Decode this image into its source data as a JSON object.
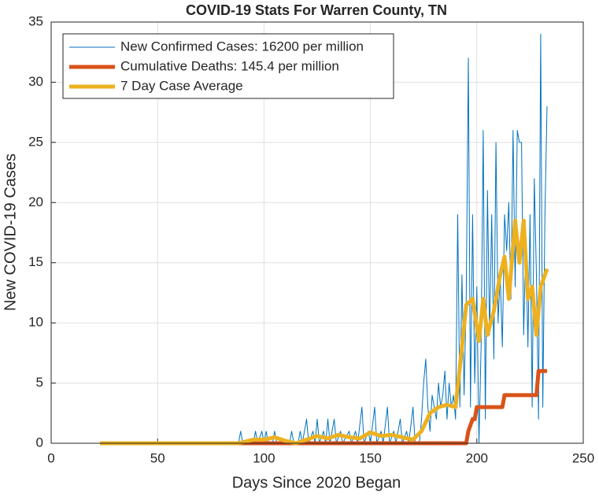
{
  "chart_data": {
    "type": "line",
    "title": "COVID-19 Stats For Warren County, TN",
    "x_label": "Days Since 2020 Began",
    "y_label": "New COVID-19 Cases",
    "xlim": [
      0,
      250
    ],
    "xticks": [
      0,
      50,
      100,
      150,
      200,
      250
    ],
    "ylim": [
      0,
      35
    ],
    "yticks": [
      0,
      5,
      10,
      15,
      20,
      25,
      30,
      35
    ],
    "grid": true,
    "legend": "upper-left",
    "series": [
      {
        "name": "New Confirmed Cases: 16200 per million",
        "color": "#0072bd",
        "width": 1,
        "x": [
          23,
          88,
          89,
          90,
          95,
          96,
          97,
          99,
          100,
          101,
          102,
          104,
          105,
          106,
          112,
          113,
          114,
          116,
          117,
          118,
          120,
          121,
          123,
          124,
          125,
          126,
          128,
          129,
          130,
          131,
          133,
          134,
          136,
          137,
          140,
          141,
          143,
          144,
          146,
          147,
          149,
          150,
          152,
          153,
          155,
          156,
          158,
          159,
          161,
          162,
          164,
          165,
          167,
          168,
          170,
          171,
          173,
          174,
          175,
          176,
          177,
          178,
          179,
          180,
          181,
          182,
          183,
          184,
          185,
          186,
          187,
          188,
          189,
          190,
          191,
          192,
          193,
          194,
          195,
          196,
          197,
          198,
          199,
          200,
          201,
          202,
          203,
          204,
          205,
          206,
          207,
          208,
          209,
          210,
          211,
          212,
          213,
          214,
          215,
          216,
          217,
          218,
          219,
          220,
          221,
          222,
          223,
          224,
          225,
          226,
          227,
          228,
          229,
          230,
          231,
          232,
          233
        ],
        "values": [
          0,
          0,
          1,
          0,
          0,
          1,
          0,
          1,
          0,
          1,
          0,
          0,
          1,
          0,
          0,
          1,
          0,
          0,
          1,
          0,
          2,
          0,
          1,
          0,
          2,
          0,
          1,
          0,
          2,
          0,
          2,
          0,
          1,
          0,
          1,
          0,
          1,
          0,
          3,
          0,
          1,
          0,
          3,
          0,
          1,
          0,
          3,
          0,
          1,
          0,
          2,
          0,
          1,
          0,
          3,
          0,
          0,
          2,
          5,
          7,
          3,
          1,
          4,
          3,
          2,
          5,
          3,
          4,
          6,
          2,
          5,
          3,
          4,
          2,
          19,
          3,
          14,
          4,
          12,
          32,
          3,
          19,
          5,
          13,
          0,
          8,
          26,
          2,
          21,
          9,
          19,
          7,
          25,
          10,
          14,
          8,
          19,
          16,
          20,
          12,
          26,
          13,
          26,
          25,
          25,
          9,
          17,
          8,
          19,
          3,
          22,
          14,
          2,
          34,
          3,
          19,
          28
        ]
      },
      {
        "name": "Cumulative Deaths: 145.4 per million",
        "color": "#d95319",
        "width": 5,
        "x": [
          23,
          195,
          196,
          198,
          199,
          200,
          212,
          213,
          228,
          229,
          233
        ],
        "values": [
          0,
          0,
          1,
          2,
          2,
          3,
          3,
          4,
          4,
          6,
          6
        ]
      },
      {
        "name": "7 Day Case Average",
        "color": "#edb120",
        "width": 5,
        "x": [
          23,
          88,
          95,
          100,
          105,
          110,
          115,
          120,
          125,
          130,
          135,
          140,
          145,
          150,
          155,
          160,
          165,
          170,
          174,
          178,
          182,
          186,
          190,
          193,
          195,
          198,
          201,
          203,
          205,
          208,
          211,
          213,
          215,
          218,
          220,
          222,
          224,
          226,
          228,
          230,
          233
        ],
        "values": [
          0,
          0,
          0.3,
          0.3,
          0.5,
          0.2,
          0,
          0.3,
          0.6,
          0.4,
          0.7,
          0.5,
          0.4,
          0.9,
          0.6,
          0.7,
          0.5,
          0.3,
          1,
          2.5,
          3,
          3.2,
          3,
          8,
          11.5,
          12,
          8.5,
          12,
          9,
          11,
          14,
          15.5,
          12,
          18.5,
          15,
          18.5,
          12,
          13,
          9,
          13,
          14.5
        ]
      }
    ]
  }
}
